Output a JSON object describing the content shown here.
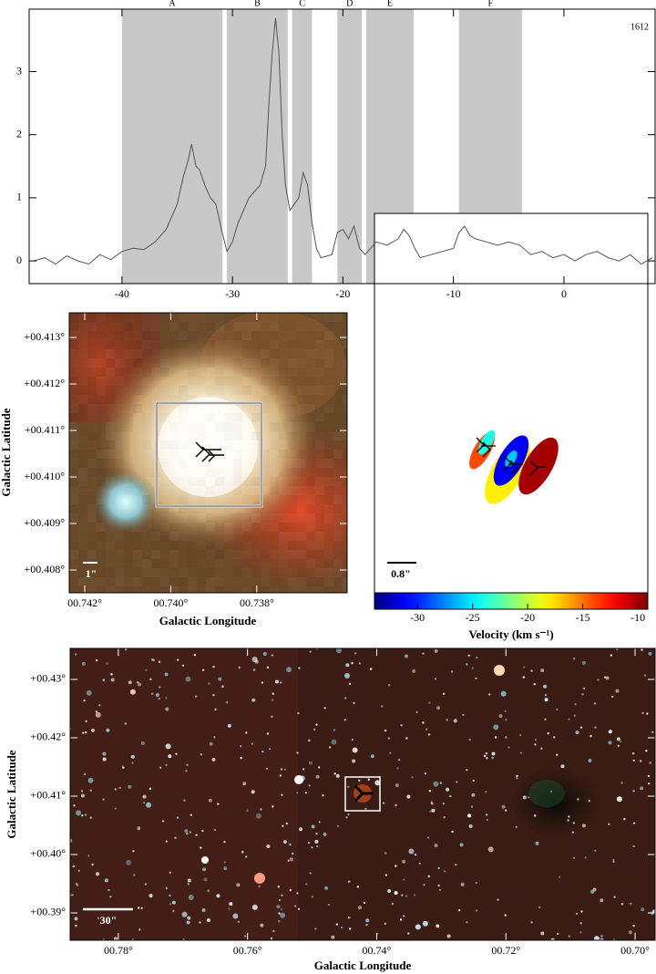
{
  "chart_data": [
    {
      "type": "line",
      "label": "1612",
      "color": "#555555",
      "region_color": "#c8c8c8",
      "x": [
        -48,
        -47,
        -46,
        -45,
        -44,
        -43,
        -42,
        -41,
        -40,
        -39,
        -38,
        -37,
        -36,
        -35,
        -34.5,
        -34,
        -33.7,
        -33.3,
        -33,
        -32.5,
        -32,
        -31.5,
        -31,
        -30.5,
        -30,
        -29.5,
        -29,
        -28.5,
        -28,
        -27.5,
        -27,
        -26.7,
        -26.4,
        -26.1,
        -25.8,
        -25.5,
        -25.2,
        -24.8,
        -24.4,
        -24,
        -23.6,
        -23.2,
        -22.8,
        -22.4,
        -22,
        -21,
        -20.5,
        -20,
        -19.5,
        -19,
        -18.5,
        -18,
        -17.5,
        -17,
        -16,
        -15,
        -14.5,
        -14,
        -13.5,
        -13,
        -12,
        -11,
        -10,
        -9.5,
        -9,
        -8.5,
        -8,
        -7,
        -6,
        -5,
        -4,
        -3,
        -2,
        -1,
        0,
        1,
        2,
        3,
        4,
        5,
        6,
        7,
        8
      ],
      "values": [
        0.0,
        0.05,
        -0.05,
        0.08,
        0.0,
        -0.05,
        0.1,
        0.02,
        0.15,
        0.2,
        0.18,
        0.3,
        0.5,
        0.9,
        1.3,
        1.6,
        1.85,
        1.5,
        1.45,
        1.2,
        1.0,
        0.9,
        0.5,
        0.15,
        0.3,
        0.6,
        0.8,
        1.0,
        1.1,
        1.2,
        1.5,
        2.5,
        3.3,
        3.85,
        3.3,
        2.0,
        1.2,
        0.8,
        0.9,
        1.0,
        1.4,
        1.2,
        0.6,
        0.2,
        0.05,
        0.1,
        0.45,
        0.5,
        0.35,
        0.55,
        0.2,
        0.1,
        0.2,
        0.3,
        0.25,
        0.35,
        0.5,
        0.4,
        0.2,
        0.05,
        0.1,
        0.15,
        0.2,
        0.45,
        0.55,
        0.4,
        0.35,
        0.3,
        0.25,
        0.3,
        0.25,
        0.1,
        0.15,
        0.05,
        0.1,
        0.0,
        0.1,
        0.15,
        0.05,
        0.0,
        0.1,
        -0.05,
        0.05
      ],
      "xlim": [
        -48.4,
        8.25
      ],
      "ylim": [
        -0.36,
        3.99
      ],
      "xticks": [
        -40,
        -30,
        -20,
        -10,
        0
      ],
      "yticks": [
        0,
        1,
        2,
        3
      ],
      "regions": [
        {
          "label": "A",
          "range": [
            -40,
            -30.9
          ]
        },
        {
          "label": "B",
          "range": [
            -30.5,
            -25.0
          ]
        },
        {
          "label": "C",
          "range": [
            -24.6,
            -22.8
          ]
        },
        {
          "label": "D",
          "range": [
            -20.5,
            -18.3
          ]
        },
        {
          "label": "E",
          "range": [
            -17.9,
            -13.6
          ]
        },
        {
          "label": "F",
          "range": [
            -9.5,
            -3.8
          ]
        }
      ]
    },
    {
      "type": "image",
      "xlabel": "Galactic Longitude",
      "ylabel": "Galactic Latitude",
      "scale_bar": "1\"",
      "xlim": [
        0.74236,
        0.7359
      ],
      "ylim": [
        0.40751,
        0.41353
      ],
      "xticks": [
        {
          "value": 0.742,
          "label": "00.742°"
        },
        {
          "value": 0.74,
          "label": "00.740°"
        },
        {
          "value": 0.738,
          "label": "00.738°"
        }
      ],
      "yticks": [
        {
          "value": 0.408,
          "label": "+00.408°"
        },
        {
          "value": 0.409,
          "label": "+00.409°"
        },
        {
          "value": 0.41,
          "label": "+00.410°"
        },
        {
          "value": 0.411,
          "label": "+00.411°"
        },
        {
          "value": 0.412,
          "label": "+00.412°"
        },
        {
          "value": 0.413,
          "label": "+00.413°"
        }
      ]
    },
    {
      "type": "ellipse",
      "scale_bar": "0.8\"",
      "velocities": [
        -14,
        -24,
        -18,
        -31,
        -26,
        -10
      ],
      "colorbar": {
        "label": "Velocity (km s⁻¹)",
        "clim": [
          -33.9,
          -9.1
        ],
        "ticks": [
          -30,
          -25,
          -20,
          -15,
          -10
        ]
      }
    },
    {
      "type": "image",
      "xlabel": "Galactic Longitude",
      "ylabel": "Galactic Latitude",
      "scale_bar": "30\"",
      "xlim": [
        0.78746,
        0.6969
      ],
      "ylim": [
        0.38531,
        0.43531
      ],
      "xticks": [
        {
          "value": 0.78,
          "label": "00.78°"
        },
        {
          "value": 0.76,
          "label": "00.76°"
        },
        {
          "value": 0.74,
          "label": "00.74°"
        },
        {
          "value": 0.72,
          "label": "00.72°"
        },
        {
          "value": 0.7,
          "label": "00.70°"
        }
      ],
      "yticks": [
        {
          "value": 0.39,
          "label": "+00.39°"
        },
        {
          "value": 0.4,
          "label": "+00.40°"
        },
        {
          "value": 0.41,
          "label": "+00.41°"
        },
        {
          "value": 0.42,
          "label": "+00.42°"
        },
        {
          "value": 0.43,
          "label": "+00.43°"
        }
      ]
    }
  ]
}
